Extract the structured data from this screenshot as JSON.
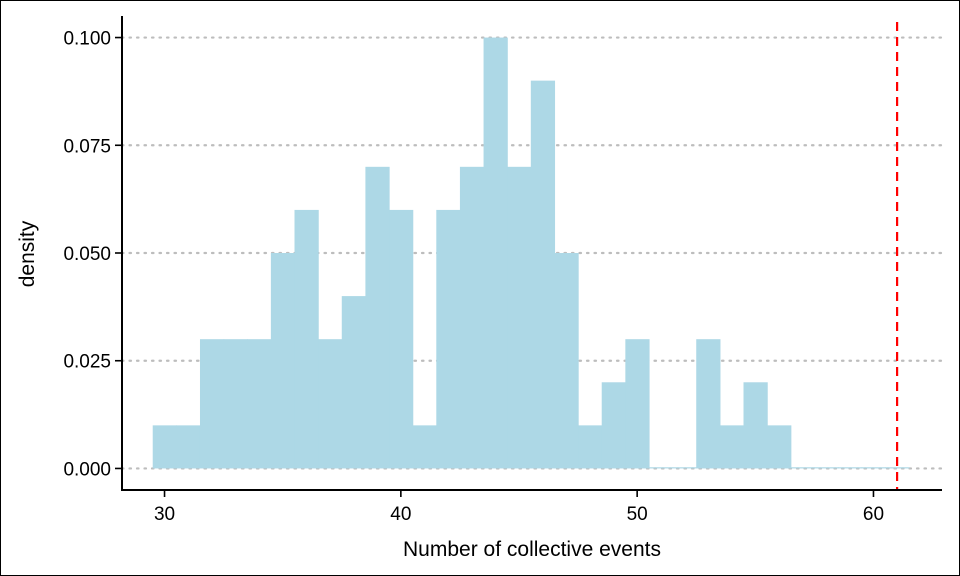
{
  "chart_data": {
    "type": "bar",
    "xlabel": "Number of collective events",
    "ylabel": "density",
    "xlim": [
      28.2,
      62.9
    ],
    "ylim": [
      -0.005,
      0.105
    ],
    "xticks": [
      30,
      40,
      50,
      60
    ],
    "yticks": [
      0.0,
      0.025,
      0.05,
      0.075,
      0.1
    ],
    "ytick_labels": [
      "0.000",
      "0.025",
      "0.050",
      "0.075",
      "0.100"
    ],
    "grid": "horizontal dotted",
    "bin_width": 1,
    "bin_starts": [
      29.5,
      30.5,
      31.5,
      32.5,
      33.5,
      34.5,
      35.5,
      36.5,
      37.5,
      38.5,
      39.5,
      40.5,
      41.5,
      42.5,
      43.5,
      44.5,
      45.5,
      46.5,
      47.5,
      48.5,
      49.5,
      50.5,
      51.5,
      52.5,
      53.5,
      54.5,
      55.5,
      56.5,
      57.5,
      58.5,
      59.5,
      60.5
    ],
    "values": [
      0.01,
      0.01,
      0.03,
      0.03,
      0.03,
      0.05,
      0.06,
      0.03,
      0.04,
      0.07,
      0.06,
      0.01,
      0.06,
      0.07,
      0.1,
      0.07,
      0.09,
      0.05,
      0.01,
      0.02,
      0.03,
      0.0,
      0.0,
      0.03,
      0.01,
      0.02,
      0.01,
      0.0,
      0.0,
      0.0,
      0.0,
      0.0
    ],
    "observed_line": {
      "x": 61.0,
      "color": "#ff0000",
      "style": "dashed"
    },
    "bar_color": "#add8e6"
  }
}
